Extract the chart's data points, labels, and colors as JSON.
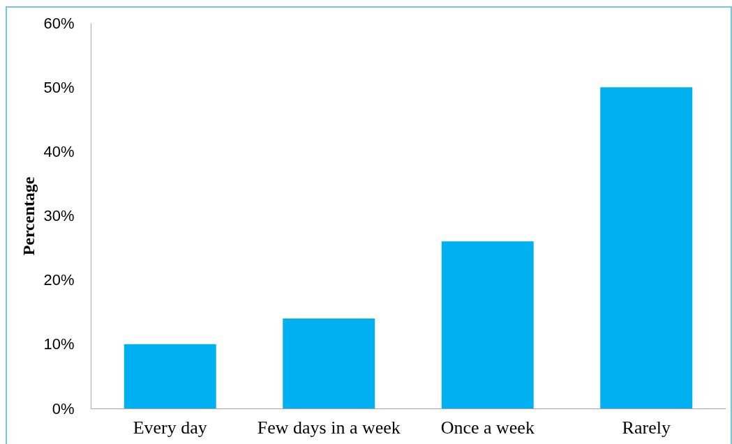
{
  "chart_data": {
    "type": "bar",
    "ylabel": "Percentage",
    "categories": [
      "Every day",
      "Few days in a week",
      "Once a week",
      "Rarely"
    ],
    "values": [
      10,
      14,
      26,
      50
    ],
    "color": "#00b0f0",
    "ylim": [
      0,
      60
    ],
    "yticks": [
      {
        "value": 0,
        "label": "0%"
      },
      {
        "value": 10,
        "label": "10%"
      },
      {
        "value": 20,
        "label": "20%"
      },
      {
        "value": 30,
        "label": "30%"
      },
      {
        "value": 40,
        "label": "40%"
      },
      {
        "value": 50,
        "label": "50%"
      },
      {
        "value": 60,
        "label": "60%"
      }
    ]
  }
}
